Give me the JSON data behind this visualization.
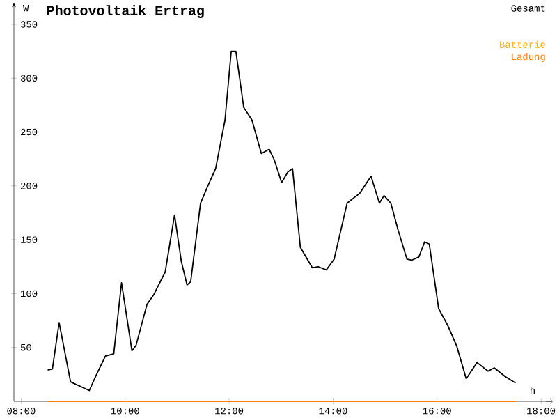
{
  "chart_data": {
    "type": "line",
    "title": "Photovoltaik Ertrag",
    "xlabel": "h",
    "ylabel": "W",
    "xlim": [
      7.86,
      18.2
    ],
    "ylim": [
      0,
      370
    ],
    "xticks": [
      {
        "value": 8,
        "label": "08:00"
      },
      {
        "value": 10,
        "label": "10:00"
      },
      {
        "value": 12,
        "label": "12:00"
      },
      {
        "value": 14,
        "label": "14:00"
      },
      {
        "value": 16,
        "label": "16:00"
      },
      {
        "value": 18,
        "label": "18:00"
      }
    ],
    "yticks": [
      50,
      100,
      150,
      200,
      250,
      300,
      350
    ],
    "legend": "top right",
    "series": [
      {
        "name": "Gesamt",
        "color": "#000000",
        "x": [
          8.51,
          8.6,
          8.73,
          8.95,
          9.31,
          9.44,
          9.62,
          9.78,
          9.93,
          10.13,
          10.21,
          10.42,
          10.55,
          10.77,
          10.95,
          11.08,
          11.19,
          11.26,
          11.45,
          11.6,
          11.74,
          11.92,
          12.04,
          12.13,
          12.28,
          12.44,
          12.62,
          12.77,
          12.87,
          13.01,
          13.13,
          13.22,
          13.37,
          13.6,
          13.71,
          13.87,
          14.02,
          14.27,
          14.51,
          14.73,
          14.89,
          14.98,
          15.11,
          15.25,
          15.42,
          15.51,
          15.65,
          15.76,
          15.85,
          16.03,
          16.21,
          16.38,
          16.56,
          16.77,
          16.98,
          17.1,
          17.31,
          17.51
        ],
        "values": [
          29,
          30,
          73,
          18,
          10,
          24,
          42,
          44,
          110,
          47,
          52,
          90,
          99,
          120,
          173,
          130,
          108,
          111,
          184,
          201,
          216,
          261,
          325,
          325,
          273,
          261,
          230,
          234,
          224,
          203,
          213,
          216,
          143,
          124,
          125,
          122,
          132,
          184,
          193,
          209,
          184,
          191,
          184,
          159,
          132,
          131,
          134,
          148,
          146,
          86,
          70,
          51,
          21,
          36,
          28,
          31,
          23,
          17
        ]
      },
      {
        "name": "Batterie",
        "color": "#ffb000"
      },
      {
        "name": "Ladung",
        "color": "#ff8000",
        "x": [
          8.51,
          17.51
        ],
        "values": [
          0,
          0
        ]
      }
    ]
  }
}
